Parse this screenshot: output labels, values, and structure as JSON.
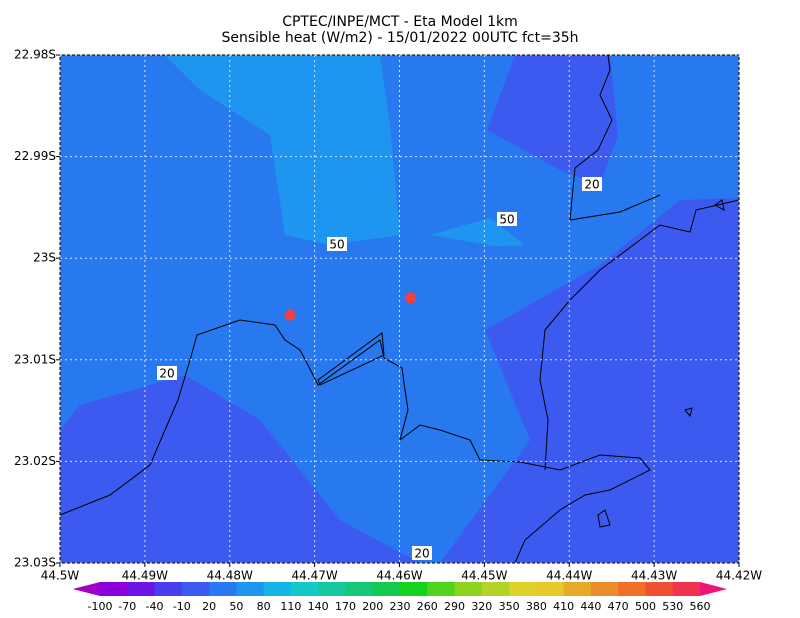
{
  "chart_data": {
    "type": "map",
    "title": "CPTEC/INPE/MCT -  Eta Model 1km",
    "subtitle": "Sensible heat (W/m2) - 15/01/2022 00UTC fct=35h",
    "xlim": [
      -44.5,
      -44.42
    ],
    "ylim": [
      -23.03,
      -22.98
    ],
    "xticks": [
      {
        "value": -44.5,
        "label": "44.5W"
      },
      {
        "value": -44.49,
        "label": "44.49W"
      },
      {
        "value": -44.48,
        "label": "44.48W"
      },
      {
        "value": -44.47,
        "label": "44.47W"
      },
      {
        "value": -44.46,
        "label": "44.46W"
      },
      {
        "value": -44.45,
        "label": "44.45W"
      },
      {
        "value": -44.44,
        "label": "44.44W"
      },
      {
        "value": -44.43,
        "label": "44.43W"
      },
      {
        "value": -44.42,
        "label": "44.42W"
      }
    ],
    "yticks": [
      {
        "value": -22.98,
        "label": "22.98S"
      },
      {
        "value": -22.99,
        "label": "22.99S"
      },
      {
        "value": -23.0,
        "label": "23S"
      },
      {
        "value": -23.01,
        "label": "23.01S"
      },
      {
        "value": -23.02,
        "label": "23.02S"
      },
      {
        "value": -23.03,
        "label": "23.03S"
      }
    ],
    "grid": true,
    "contour_labels": [
      "50",
      "50",
      "20",
      "20",
      "20"
    ],
    "markers": {
      "color": "#f04040",
      "x": [
        -44.4729,
        -44.4587
      ],
      "y": [
        -23.0056,
        -23.0039
      ]
    },
    "colorbar": {
      "levels": [
        -100,
        -70,
        -40,
        -10,
        20,
        50,
        80,
        110,
        140,
        170,
        200,
        230,
        260,
        290,
        320,
        350,
        380,
        410,
        440,
        470,
        500,
        530,
        560
      ],
      "colors": [
        "#a000c8",
        "#8c00dc",
        "#6e14e6",
        "#4b3cf0",
        "#3c5af0",
        "#2878f0",
        "#1e96f0",
        "#14b4e6",
        "#14c8c8",
        "#14c8a0",
        "#14c878",
        "#14c850",
        "#14d21e",
        "#50d21e",
        "#8cd21e",
        "#b4d228",
        "#dcd228",
        "#e6c828",
        "#e6aa28",
        "#eb8c28",
        "#f06e28",
        "#f05032",
        "#f03250",
        "#f01478"
      ]
    }
  }
}
